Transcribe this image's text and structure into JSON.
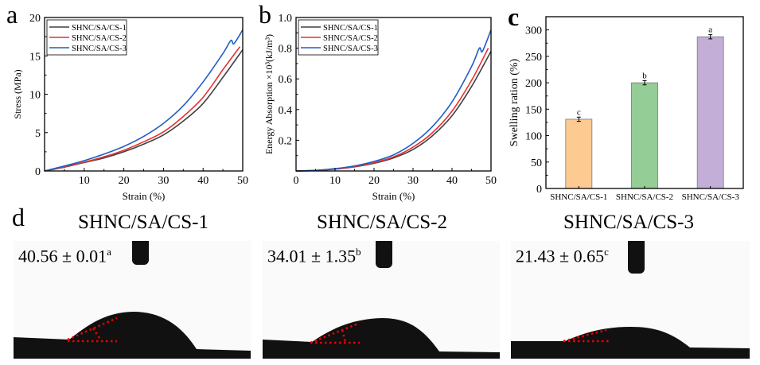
{
  "panel_letters": [
    "a",
    "b",
    "c",
    "d"
  ],
  "chart_data": [
    {
      "type": "line",
      "panel": "a",
      "title": "",
      "xlabel": "Strain (%)",
      "ylabel": "Stress (MPa)",
      "xlim": [
        0,
        50
      ],
      "ylim": [
        0,
        20
      ],
      "xticks": [
        10,
        20,
        30,
        40,
        50
      ],
      "yticks": [
        0,
        5,
        10,
        15,
        20
      ],
      "legend": "top-left",
      "series": [
        {
          "name": "SHNC/SA/CS-1",
          "color": "#404040",
          "x": [
            0,
            5,
            10,
            15,
            20,
            25,
            30,
            35,
            40,
            45,
            50
          ],
          "y": [
            0,
            0.5,
            1.1,
            1.7,
            2.5,
            3.5,
            4.7,
            6.5,
            8.8,
            12.2,
            15.8
          ]
        },
        {
          "name": "SHNC/SA/CS-2",
          "color": "#e8312f",
          "x": [
            0,
            5,
            10,
            15,
            20,
            25,
            30,
            35,
            40,
            45,
            49.3
          ],
          "y": [
            0,
            0.55,
            1.15,
            1.85,
            2.7,
            3.8,
            5.1,
            7.1,
            9.6,
            13.2,
            16.2
          ]
        },
        {
          "name": "SHNC/SA/CS-3",
          "color": "#1f5fc7",
          "x": [
            0,
            5,
            10,
            15,
            20,
            25,
            30,
            35,
            40,
            45,
            47,
            47.8,
            50
          ],
          "y": [
            0,
            0.65,
            1.35,
            2.2,
            3.2,
            4.5,
            6.2,
            8.5,
            11.6,
            15.3,
            17.0,
            16.6,
            18.4
          ]
        }
      ]
    },
    {
      "type": "line",
      "panel": "b",
      "title": "",
      "xlabel": "Strain (%)",
      "ylabel": "Energy Absorption ×10³(kJ/m³)",
      "xlim": [
        0,
        50
      ],
      "ylim": [
        0,
        1.0
      ],
      "xticks": [
        0,
        10,
        20,
        30,
        40,
        50
      ],
      "yticks": [
        0.2,
        0.4,
        0.6,
        0.8,
        1.0
      ],
      "legend": "top-left",
      "series": [
        {
          "name": "SHNC/SA/CS-1",
          "color": "#404040",
          "x": [
            0,
            5,
            10,
            15,
            20,
            25,
            30,
            35,
            40,
            45,
            50
          ],
          "y": [
            0,
            0.003,
            0.012,
            0.027,
            0.05,
            0.085,
            0.14,
            0.23,
            0.36,
            0.55,
            0.78
          ]
        },
        {
          "name": "SHNC/SA/CS-2",
          "color": "#e8312f",
          "x": [
            0,
            5,
            10,
            15,
            20,
            25,
            30,
            35,
            40,
            45,
            49.3
          ],
          "y": [
            0,
            0.003,
            0.013,
            0.029,
            0.054,
            0.092,
            0.155,
            0.25,
            0.39,
            0.59,
            0.8
          ]
        },
        {
          "name": "SHNC/SA/CS-3",
          "color": "#1f5fc7",
          "x": [
            0,
            5,
            10,
            15,
            20,
            25,
            30,
            35,
            40,
            45,
            47,
            47.8,
            50
          ],
          "y": [
            0,
            0.004,
            0.015,
            0.033,
            0.062,
            0.105,
            0.18,
            0.29,
            0.45,
            0.68,
            0.8,
            0.78,
            0.92
          ]
        }
      ]
    },
    {
      "type": "bar",
      "panel": "c",
      "title": "",
      "xlabel": "",
      "ylabel": "Swelling ration (%)",
      "ylim": [
        0,
        325
      ],
      "yticks": [
        0,
        50,
        100,
        150,
        200,
        250,
        300
      ],
      "categories": [
        "SHNC/SA/CS-1",
        "SHNC/SA/CS-2",
        "SHNC/SA/CS-3"
      ],
      "values": [
        131,
        200,
        287
      ],
      "errors": [
        4,
        4,
        4
      ],
      "annotations": [
        "c",
        "b",
        "a"
      ],
      "colors": [
        "#fdcb92",
        "#94cd95",
        "#c2aed6"
      ]
    }
  ],
  "contact_angle": {
    "items": [
      {
        "title": "SHNC/SA/CS-1",
        "value": "40.56 ± 0.01",
        "sup": "a"
      },
      {
        "title": "SHNC/SA/CS-2",
        "value": "34.01 ± 1.35",
        "sup": "b"
      },
      {
        "title": "SHNC/SA/CS-3",
        "value": "21.43 ± 0.65",
        "sup": "c"
      }
    ]
  }
}
